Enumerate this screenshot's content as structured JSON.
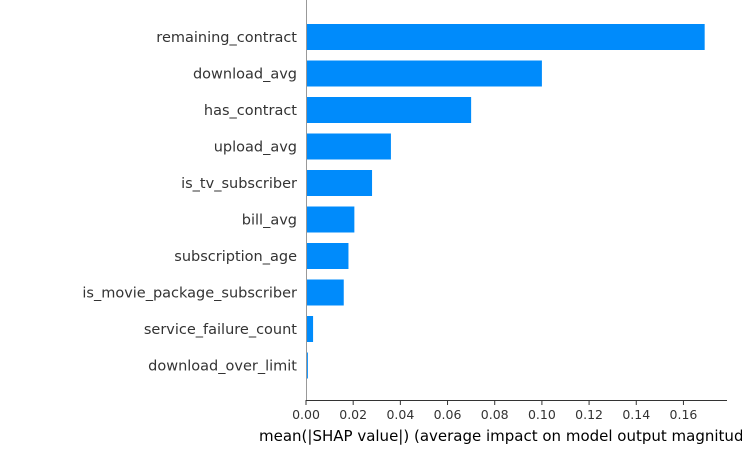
{
  "chart_data": {
    "type": "bar",
    "orientation": "horizontal",
    "categories": [
      "remaining_contract",
      "download_avg",
      "has_contract",
      "upload_avg",
      "is_tv_subscriber",
      "bill_avg",
      "subscription_age",
      "is_movie_package_subscriber",
      "service_failure_count",
      "download_over_limit"
    ],
    "values": [
      0.169,
      0.1,
      0.07,
      0.036,
      0.028,
      0.0205,
      0.018,
      0.016,
      0.003,
      0.0008
    ],
    "xlabel": "mean(|SHAP value|) (average impact on model output magnitude)",
    "ylabel": "",
    "title": "",
    "xlim": [
      0,
      0.17
    ],
    "x_ticks": [
      0.0,
      0.02,
      0.04,
      0.06,
      0.08,
      0.1,
      0.12,
      0.14,
      0.16
    ],
    "x_tick_labels": [
      "0.00",
      "0.02",
      "0.04",
      "0.06",
      "0.08",
      "0.10",
      "0.12",
      "0.14",
      "0.16"
    ],
    "bar_color": "#008bfb",
    "grid": false,
    "legend": "none"
  }
}
